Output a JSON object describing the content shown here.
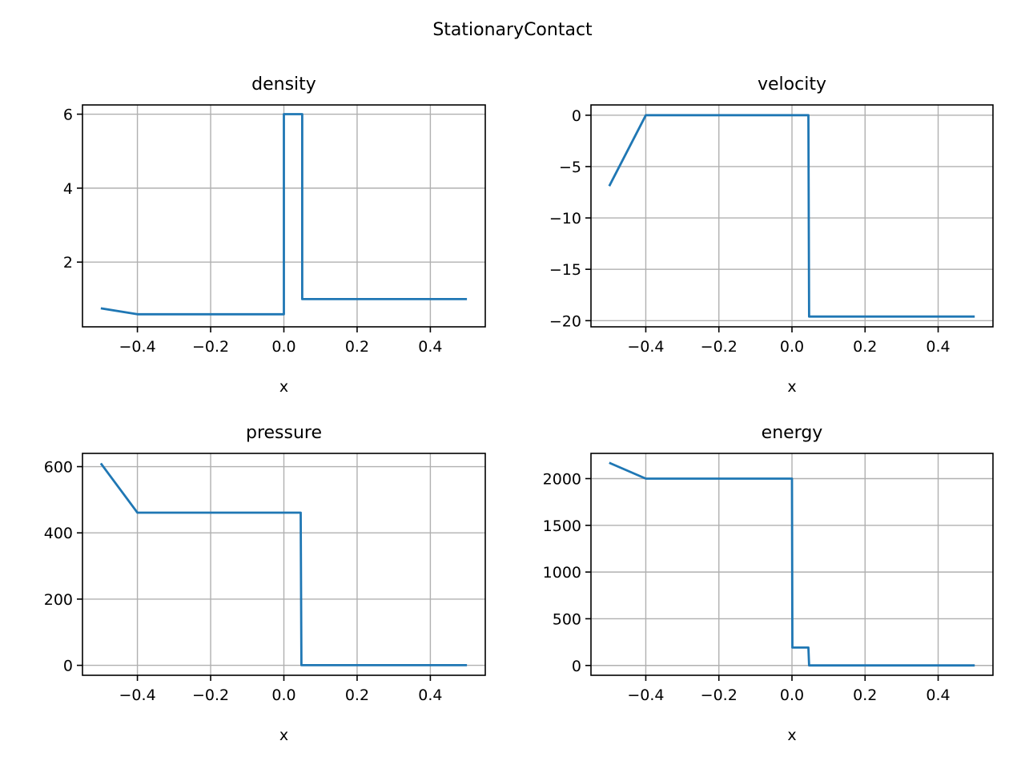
{
  "figure": {
    "title": "StationaryContact"
  },
  "chart_data": [
    {
      "type": "line",
      "title": "density",
      "xlabel": "x",
      "ylabel": "",
      "xlim": [
        -0.55,
        0.55
      ],
      "ylim": [
        0.25,
        6.25
      ],
      "xticks": [
        -0.4,
        -0.2,
        0.0,
        0.2,
        0.4
      ],
      "xtick_labels": [
        "−0.4",
        "−0.2",
        "0.0",
        "0.2",
        "0.4"
      ],
      "yticks": [
        2,
        4,
        6
      ],
      "ytick_labels": [
        "2",
        "4",
        "6"
      ],
      "grid": true,
      "color": "#1f77b4",
      "x": [
        -0.5,
        -0.4,
        0.0,
        0.0,
        0.05,
        0.05,
        0.5
      ],
      "y": [
        0.75,
        0.59,
        0.59,
        6.0,
        6.0,
        1.0,
        1.0
      ]
    },
    {
      "type": "line",
      "title": "velocity",
      "xlabel": "x",
      "ylabel": "",
      "xlim": [
        -0.55,
        0.55
      ],
      "ylim": [
        -20.6,
        1.0
      ],
      "xticks": [
        -0.4,
        -0.2,
        0.0,
        0.2,
        0.4
      ],
      "xtick_labels": [
        "−0.4",
        "−0.2",
        "0.0",
        "0.2",
        "0.4"
      ],
      "yticks": [
        0,
        -5,
        -10,
        -15,
        -20
      ],
      "ytick_labels": [
        "0",
        "−5",
        "−10",
        "−15",
        "−20"
      ],
      "grid": true,
      "color": "#1f77b4",
      "x": [
        -0.5,
        -0.4,
        0.045,
        0.047,
        0.5
      ],
      "y": [
        -6.9,
        0.0,
        0.0,
        -19.6,
        -19.6
      ]
    },
    {
      "type": "line",
      "title": "pressure",
      "xlabel": "x",
      "ylabel": "",
      "xlim": [
        -0.55,
        0.55
      ],
      "ylim": [
        -30,
        640
      ],
      "xticks": [
        -0.4,
        -0.2,
        0.0,
        0.2,
        0.4
      ],
      "xtick_labels": [
        "−0.4",
        "−0.2",
        "0.0",
        "0.2",
        "0.4"
      ],
      "yticks": [
        0,
        200,
        400,
        600
      ],
      "ytick_labels": [
        "0",
        "200",
        "400",
        "600"
      ],
      "grid": true,
      "color": "#1f77b4",
      "x": [
        -0.5,
        -0.4,
        0.046,
        0.048,
        0.5
      ],
      "y": [
        610,
        460.9,
        460.9,
        0.46,
        0.46
      ]
    },
    {
      "type": "line",
      "title": "energy",
      "xlabel": "x",
      "ylabel": "",
      "xlim": [
        -0.55,
        0.55
      ],
      "ylim": [
        -105,
        2270
      ],
      "xticks": [
        -0.4,
        -0.2,
        0.0,
        0.2,
        0.4
      ],
      "xtick_labels": [
        "−0.4",
        "−0.2",
        "0.0",
        "0.2",
        "0.4"
      ],
      "yticks": [
        0,
        500,
        1000,
        1500,
        2000
      ],
      "ytick_labels": [
        "0",
        "500",
        "1000",
        "1500",
        "2000"
      ],
      "grid": true,
      "color": "#1f77b4",
      "x": [
        -0.5,
        -0.4,
        0.0,
        0.001,
        0.045,
        0.047,
        0.5
      ],
      "y": [
        2170,
        2000,
        2000,
        192,
        192,
        0.46,
        0.46
      ]
    }
  ]
}
